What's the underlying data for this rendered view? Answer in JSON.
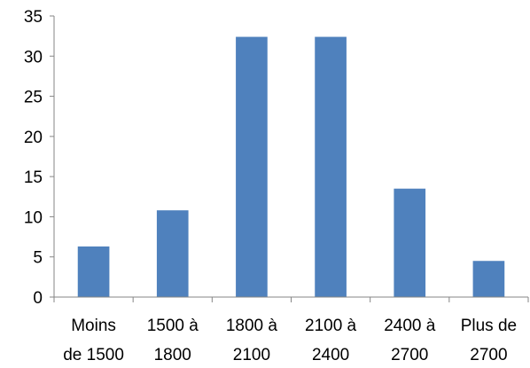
{
  "chart_data": {
    "type": "bar",
    "categories": [
      [
        "Moins",
        "de 1500"
      ],
      [
        "1500 à",
        "1800"
      ],
      [
        "1800 à",
        "2100"
      ],
      [
        "2100 à",
        "2400"
      ],
      [
        "2400 à",
        "2700"
      ],
      [
        "Plus de",
        "2700"
      ]
    ],
    "values": [
      6.3,
      10.8,
      32.4,
      32.4,
      13.5,
      4.5
    ],
    "ylim": [
      0,
      35
    ],
    "yticks": [
      "0",
      "5",
      "10",
      "15",
      "20",
      "25",
      "30",
      "35"
    ],
    "title": "",
    "xlabel": "",
    "ylabel": "",
    "grid": false,
    "legend": "none",
    "colors": {
      "bar": "#4F81BD",
      "axis": "#868686",
      "text": "#000000"
    }
  }
}
